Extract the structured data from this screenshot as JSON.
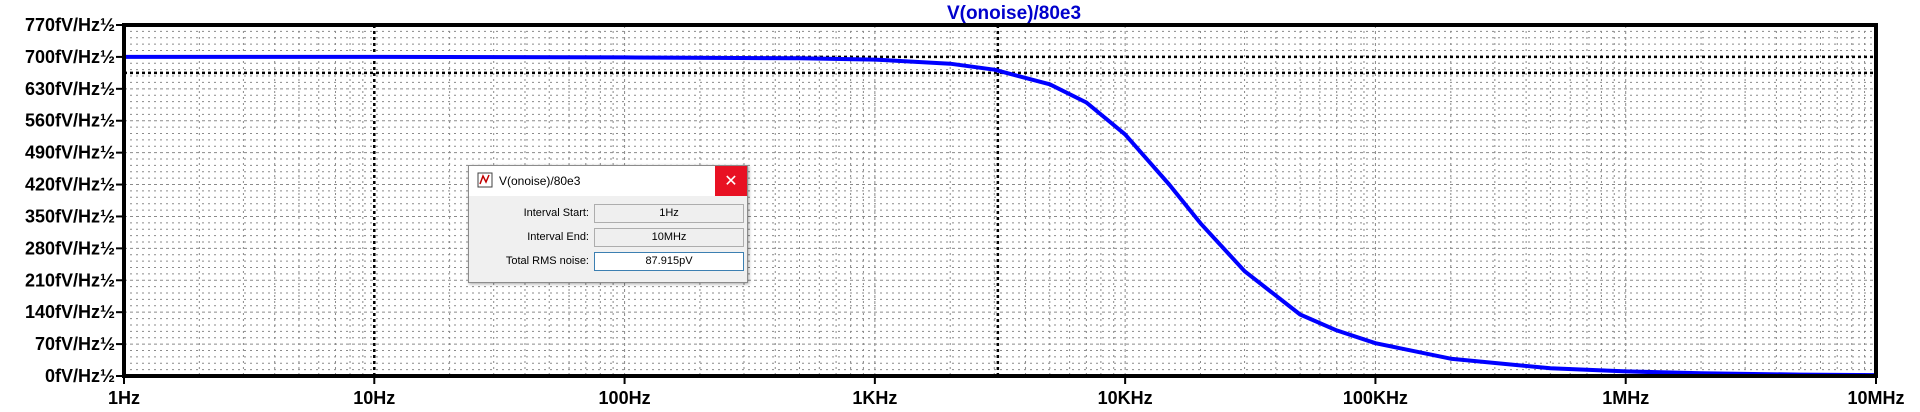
{
  "window": {
    "trace_title": "V(onoise)/80e3"
  },
  "chart_data": {
    "type": "line",
    "title": "V(onoise)/80e3",
    "x_scale": "log",
    "xlim": [
      1,
      10000000
    ],
    "ylim": [
      0,
      770
    ],
    "y_unit": "fV/Hz½",
    "x_ticks": [
      {
        "value": 1,
        "label": "1Hz"
      },
      {
        "value": 10,
        "label": "10Hz"
      },
      {
        "value": 100,
        "label": "100Hz"
      },
      {
        "value": 1000,
        "label": "1KHz"
      },
      {
        "value": 10000,
        "label": "10KHz"
      },
      {
        "value": 100000,
        "label": "100KHz"
      },
      {
        "value": 1000000,
        "label": "1MHz"
      },
      {
        "value": 10000000,
        "label": "10MHz"
      }
    ],
    "y_ticks": [
      {
        "value": 770,
        "label": "770fV/Hz½"
      },
      {
        "value": 700,
        "label": "700fV/Hz½"
      },
      {
        "value": 630,
        "label": "630fV/Hz½"
      },
      {
        "value": 560,
        "label": "560fV/Hz½"
      },
      {
        "value": 490,
        "label": "490fV/Hz½"
      },
      {
        "value": 420,
        "label": "420fV/Hz½"
      },
      {
        "value": 350,
        "label": "350fV/Hz½"
      },
      {
        "value": 280,
        "label": "280fV/Hz½"
      },
      {
        "value": 210,
        "label": "210fV/Hz½"
      },
      {
        "value": 140,
        "label": "140fV/Hz½"
      },
      {
        "value": 70,
        "label": "70fV/Hz½"
      },
      {
        "value": 0,
        "label": "0fV/Hz½"
      }
    ],
    "grid": true,
    "series": [
      {
        "name": "V(onoise)/80e3",
        "color": "#0000ff",
        "x": [
          1,
          10,
          100,
          500,
          1000,
          2000,
          3000,
          5000,
          7000,
          10000,
          15000,
          20000,
          30000,
          50000,
          70000,
          100000,
          200000,
          500000,
          1000000,
          2000000,
          5000000,
          10000000
        ],
        "y": [
          700,
          700,
          699,
          697,
          694,
          685,
          672,
          640,
          600,
          530,
          420,
          335,
          230,
          135,
          100,
          72,
          38,
          17,
          10,
          6,
          3,
          2
        ]
      }
    ],
    "cursors": {
      "x": [
        10,
        3100
      ],
      "y": [
        700,
        665
      ]
    }
  },
  "dialog": {
    "title": "V(onoise)/80e3",
    "close_glyph": "✕",
    "rows": [
      {
        "label": "Interval Start:",
        "value": "1Hz"
      },
      {
        "label": "Interval End:",
        "value": "10MHz"
      },
      {
        "label": "Total RMS noise:",
        "value": "87.915pV"
      }
    ]
  }
}
